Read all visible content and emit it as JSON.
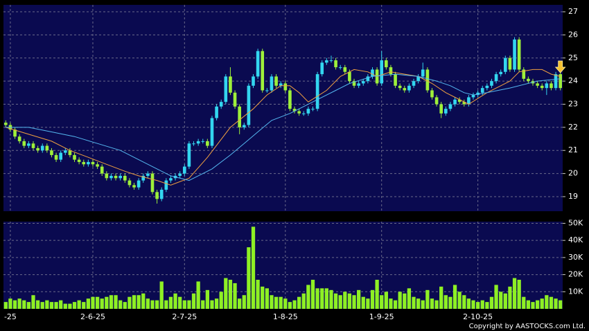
{
  "chart_data": [
    {
      "type": "candlestick",
      "categories": [
        null,
        "-25",
        null,
        null,
        null,
        null,
        null,
        null,
        null,
        null,
        null,
        null,
        null,
        null,
        null,
        null,
        null,
        null,
        null,
        "2-6-25",
        null,
        null,
        null,
        null,
        null,
        null,
        null,
        null,
        null,
        null,
        null,
        null,
        null,
        null,
        null,
        null,
        null,
        null,
        null,
        "2-7-25",
        null,
        null,
        null,
        null,
        null,
        null,
        null,
        null,
        null,
        null,
        null,
        null,
        null,
        null,
        null,
        null,
        null,
        null,
        null,
        null,
        null,
        "1-8-25",
        null,
        null,
        null,
        null,
        null,
        null,
        null,
        null,
        null,
        null,
        null,
        null,
        null,
        null,
        null,
        null,
        null,
        null,
        null,
        null,
        "1-9-25",
        null,
        null,
        null,
        null,
        null,
        null,
        null,
        null,
        null,
        null,
        null,
        null,
        null,
        null,
        null,
        null,
        null,
        null,
        null,
        null,
        "2-10-25",
        null,
        null,
        null,
        null,
        null,
        null,
        null,
        null,
        null,
        null,
        null,
        null,
        null,
        null,
        null,
        null,
        null,
        null
      ],
      "open": [
        22.2,
        22.1,
        21.9,
        21.6,
        21.4,
        21.2,
        21.3,
        21.1,
        21.0,
        21.2,
        21.0,
        20.8,
        20.6,
        20.9,
        21.0,
        20.8,
        20.6,
        20.5,
        20.4,
        20.5,
        20.4,
        20.3,
        20.0,
        19.8,
        19.9,
        19.8,
        19.9,
        19.7,
        19.5,
        19.4,
        19.7,
        19.9,
        20.0,
        19.2,
        18.9,
        19.3,
        19.7,
        19.8,
        19.9,
        20.0,
        20.3,
        21.3,
        21.3,
        21.4,
        21.4,
        21.2,
        22.4,
        22.9,
        23.1,
        24.2,
        23.5,
        22.9,
        22.0,
        22.1,
        23.8,
        24.2,
        25.3,
        23.6,
        23.6,
        24.2,
        23.8,
        23.9,
        23.6,
        22.8,
        22.7,
        22.6,
        22.6,
        22.8,
        22.8,
        24.3,
        24.8,
        24.9,
        24.9,
        24.6,
        24.6,
        24.4,
        24.0,
        23.8,
        23.9,
        24.0,
        24.2,
        24.5,
        23.9,
        24.9,
        24.6,
        24.3,
        23.8,
        23.7,
        23.6,
        23.8,
        24.0,
        24.2,
        24.5,
        23.6,
        23.3,
        23.0,
        22.6,
        22.8,
        23.0,
        23.2,
        23.1,
        23.0,
        23.3,
        23.4,
        23.5,
        23.7,
        23.8,
        24.0,
        24.3,
        24.4,
        25.0,
        24.5,
        25.8,
        24.5,
        24.1,
        24.0,
        23.9,
        23.8,
        23.7,
        23.9,
        23.7,
        24.3
      ],
      "high": [
        22.3,
        22.2,
        22.0,
        21.7,
        21.5,
        21.4,
        21.4,
        21.2,
        21.3,
        21.3,
        21.1,
        20.9,
        21.0,
        21.1,
        21.1,
        20.9,
        20.7,
        20.6,
        20.6,
        20.6,
        20.5,
        20.4,
        20.1,
        20.0,
        20.0,
        20.0,
        20.0,
        19.8,
        19.6,
        19.8,
        20.0,
        20.1,
        20.1,
        19.3,
        19.4,
        19.8,
        19.9,
        20.0,
        20.1,
        20.4,
        21.4,
        21.4,
        21.5,
        21.5,
        21.5,
        22.5,
        23.0,
        23.2,
        24.3,
        24.6,
        23.6,
        23.0,
        22.2,
        23.9,
        24.3,
        25.4,
        25.4,
        23.7,
        24.3,
        24.3,
        24.0,
        24.0,
        23.7,
        22.9,
        22.8,
        22.7,
        22.9,
        22.9,
        24.4,
        24.9,
        25.0,
        25.1,
        25.0,
        24.7,
        24.7,
        24.5,
        24.1,
        24.0,
        24.1,
        24.3,
        24.6,
        24.6,
        25.3,
        25.0,
        24.7,
        24.4,
        23.9,
        23.8,
        23.9,
        24.1,
        24.3,
        24.8,
        24.6,
        23.7,
        23.4,
        23.1,
        22.9,
        23.1,
        23.3,
        23.3,
        23.2,
        23.4,
        23.5,
        23.6,
        23.8,
        23.9,
        24.1,
        24.4,
        24.5,
        25.1,
        25.1,
        25.9,
        25.9,
        24.6,
        24.2,
        24.1,
        24.0,
        23.9,
        24.0,
        24.0,
        24.4,
        24.4
      ],
      "low": [
        22.0,
        21.8,
        21.5,
        21.3,
        21.1,
        21.1,
        21.0,
        20.9,
        20.9,
        20.9,
        20.7,
        20.5,
        20.5,
        20.8,
        20.7,
        20.5,
        20.4,
        20.3,
        20.3,
        20.3,
        20.2,
        19.9,
        19.7,
        19.7,
        19.7,
        19.7,
        19.6,
        19.4,
        19.3,
        19.3,
        19.6,
        19.8,
        19.1,
        18.7,
        18.8,
        19.2,
        19.6,
        19.7,
        19.8,
        19.9,
        20.2,
        21.2,
        21.2,
        21.3,
        21.1,
        21.1,
        22.3,
        22.8,
        23.0,
        23.4,
        22.8,
        21.7,
        21.9,
        22.0,
        23.7,
        24.1,
        23.5,
        23.5,
        23.5,
        23.7,
        23.7,
        23.5,
        22.7,
        22.6,
        22.5,
        22.5,
        22.5,
        22.7,
        22.7,
        24.2,
        24.7,
        24.8,
        24.5,
        24.5,
        24.3,
        23.9,
        23.7,
        23.7,
        23.8,
        23.9,
        24.1,
        23.8,
        23.8,
        24.5,
        24.2,
        23.7,
        23.6,
        23.5,
        23.5,
        23.7,
        23.9,
        24.1,
        23.5,
        23.2,
        22.9,
        22.4,
        22.5,
        22.7,
        22.9,
        23.0,
        22.9,
        22.9,
        23.2,
        23.3,
        23.4,
        23.6,
        23.7,
        23.9,
        24.2,
        24.3,
        24.4,
        24.4,
        24.4,
        24.0,
        23.9,
        23.8,
        23.7,
        23.6,
        23.4,
        23.6,
        23.6,
        23.6
      ],
      "close": [
        22.1,
        21.9,
        21.6,
        21.4,
        21.2,
        21.3,
        21.1,
        21.0,
        21.2,
        21.0,
        20.8,
        20.6,
        20.9,
        21.0,
        20.8,
        20.6,
        20.5,
        20.4,
        20.5,
        20.4,
        20.3,
        20.0,
        19.8,
        19.9,
        19.8,
        19.9,
        19.7,
        19.5,
        19.4,
        19.7,
        19.9,
        20.0,
        19.2,
        18.9,
        19.3,
        19.7,
        19.8,
        19.9,
        20.0,
        20.3,
        21.3,
        21.3,
        21.4,
        21.4,
        21.2,
        22.4,
        22.9,
        23.1,
        24.2,
        23.5,
        22.9,
        22.0,
        22.1,
        23.8,
        24.2,
        25.3,
        23.6,
        23.6,
        24.2,
        23.8,
        23.9,
        23.6,
        22.8,
        22.7,
        22.6,
        22.6,
        22.8,
        22.8,
        24.3,
        24.8,
        24.9,
        24.9,
        24.6,
        24.6,
        24.4,
        24.0,
        23.8,
        23.9,
        24.0,
        24.2,
        24.5,
        23.9,
        24.9,
        24.6,
        24.3,
        23.8,
        23.7,
        23.6,
        23.8,
        24.0,
        24.2,
        24.5,
        23.6,
        23.3,
        23.0,
        22.6,
        22.8,
        23.0,
        23.2,
        23.1,
        23.0,
        23.3,
        23.4,
        23.5,
        23.7,
        23.8,
        24.0,
        24.3,
        24.4,
        25.0,
        24.5,
        25.8,
        24.5,
        24.1,
        24.0,
        23.9,
        23.8,
        23.7,
        23.9,
        23.7,
        24.3,
        23.7
      ],
      "up_color": "#33d6f0",
      "down_color": "#9ef03a",
      "lines": [
        {
          "color": "#f0a040",
          "x": [
            0,
            5,
            10,
            14,
            18,
            22,
            26,
            29,
            33,
            36,
            40,
            44,
            49,
            54,
            57,
            60,
            62,
            64,
            66,
            70,
            73,
            76,
            79,
            81,
            84,
            87,
            90,
            93,
            96,
            98,
            101,
            105,
            108,
            110,
            112,
            115,
            117,
            119,
            121
          ],
          "values": [
            22.0,
            21.7,
            21.4,
            21.0,
            20.7,
            20.4,
            20.1,
            19.9,
            19.7,
            19.5,
            19.8,
            20.7,
            22.0,
            22.8,
            23.4,
            23.8,
            23.8,
            23.5,
            23.1,
            23.6,
            24.2,
            24.5,
            24.4,
            24.2,
            24.4,
            24.3,
            24.2,
            23.9,
            23.5,
            23.3,
            23.0,
            23.5,
            23.8,
            24.0,
            24.4,
            24.5,
            24.5,
            24.3,
            24.2
          ]
        },
        {
          "color": "#55b8f0",
          "x": [
            0,
            5,
            10,
            15,
            20,
            25,
            29,
            33,
            36,
            40,
            45,
            49,
            52,
            55,
            58,
            62,
            65,
            68,
            72,
            75,
            80,
            85,
            90,
            94,
            97,
            100,
            102,
            105,
            110,
            116,
            121
          ],
          "values": [
            22.0,
            22.0,
            21.8,
            21.6,
            21.3,
            21.0,
            20.6,
            20.2,
            19.9,
            19.7,
            20.2,
            20.8,
            21.3,
            21.8,
            22.3,
            22.6,
            22.9,
            23.2,
            23.6,
            23.9,
            24.2,
            24.3,
            24.2,
            24.0,
            23.8,
            23.5,
            23.4,
            23.5,
            23.7,
            24.0,
            24.1
          ]
        }
      ],
      "ylim": [
        18.37,
        27.3
      ],
      "yticks": [
        19,
        20,
        21,
        22,
        23,
        24,
        25,
        26,
        27
      ],
      "grid": true
    },
    {
      "type": "bar",
      "color": "#8ef024",
      "values": [
        4000,
        6000,
        5000,
        6000,
        5000,
        4000,
        8000,
        5000,
        4000,
        5000,
        4000,
        4000,
        5000,
        3000,
        3000,
        4000,
        5000,
        4000,
        6000,
        7000,
        7000,
        6000,
        7000,
        8000,
        8000,
        5000,
        4000,
        7000,
        8000,
        8000,
        9000,
        6000,
        5000,
        5000,
        16000,
        5000,
        7000,
        9000,
        7000,
        5000,
        5000,
        9000,
        16000,
        5000,
        11000,
        5000,
        6000,
        10000,
        18000,
        17000,
        15000,
        6000,
        8000,
        36000,
        48000,
        17000,
        13000,
        12000,
        8000,
        7000,
        7000,
        6000,
        4000,
        5000,
        7000,
        9000,
        14000,
        17000,
        12000,
        12000,
        12000,
        11000,
        9000,
        8000,
        10000,
        9000,
        8000,
        11000,
        7000,
        6000,
        11000,
        17000,
        8000,
        10000,
        6000,
        5000,
        10000,
        9000,
        12000,
        7000,
        6000,
        5000,
        11000,
        6000,
        5000,
        13000,
        8000,
        7000,
        14000,
        10000,
        8000,
        6000,
        5000,
        4000,
        5000,
        4000,
        7000,
        14000,
        10000,
        9000,
        13000,
        18000,
        17000,
        7000,
        5000,
        4000,
        5000,
        6000,
        8000,
        7000,
        6000,
        5000
      ],
      "ylim": [
        0,
        51000
      ],
      "yticks": [
        {
          "value": 10000,
          "label": "10K"
        },
        {
          "value": 20000,
          "label": "20K"
        },
        {
          "value": 30000,
          "label": "30K"
        },
        {
          "value": 40000,
          "label": "40K"
        },
        {
          "value": 50000,
          "label": "50K"
        }
      ],
      "grid": true
    }
  ],
  "copyright": "Copyright by AASTOCKS.com Ltd."
}
